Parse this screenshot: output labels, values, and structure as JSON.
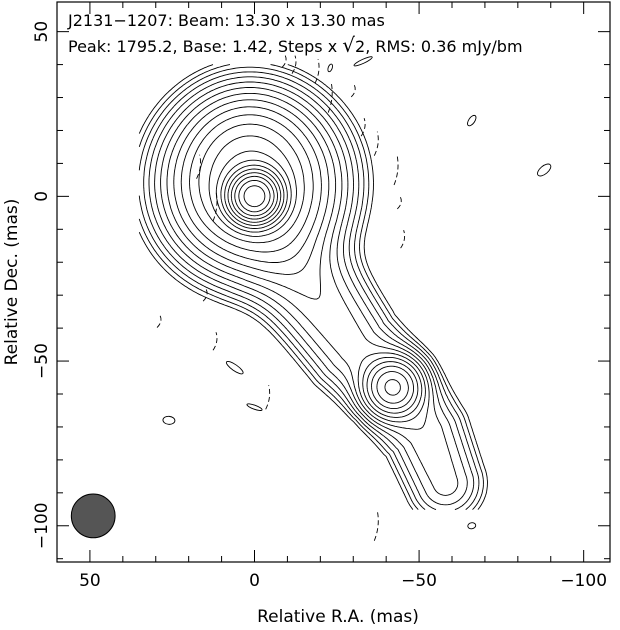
{
  "header": {
    "line1": "J2131−1207: Beam: 13.30 x 13.30 mas",
    "line2_prefix": "Peak: 1795.2, Base: 1.42, Steps x ",
    "line2_step": "2",
    "line2_suffix": ", RMS: 0.36 mJy/bm"
  },
  "chart_data": {
    "type": "contour",
    "title": "J2131−1207: Beam: 13.30 x 13.30 mas",
    "subtitle": "Peak: 1795.2, Base: 1.42, Steps x √2, RMS: 0.36 mJy/bm",
    "xlabel": "Relative R.A. (mas)",
    "ylabel": "Relative Dec. (mas)",
    "xlim": [
      60,
      -108
    ],
    "ylim": [
      -111,
      59
    ],
    "x_ticks": [
      50,
      0,
      -50,
      -100
    ],
    "x_tick_labels": [
      "50",
      "0",
      "−50",
      "−100"
    ],
    "y_ticks": [
      50,
      0,
      -50,
      -100
    ],
    "y_tick_labels": [
      "50",
      "0",
      "−50",
      "−100"
    ],
    "beam": {
      "major_mas": 13.3,
      "minor_mas": 13.3,
      "center": [
        49,
        -97
      ]
    },
    "peak_mJy_per_beam": 1795.2,
    "base_contour_mJy_per_beam": 1.42,
    "contour_step": "x sqrt(2)",
    "rms_mJy_per_beam": 0.36,
    "contour_count": 21,
    "components": [
      {
        "name": "core",
        "ra": 0,
        "dec": 0
      },
      {
        "name": "jet-component",
        "ra": -42,
        "dec": -58
      }
    ],
    "jet_axis": [
      [
        2,
        15
      ],
      [
        0,
        0
      ],
      [
        -10,
        -18
      ],
      [
        -20,
        -32
      ],
      [
        -30,
        -46
      ],
      [
        -42,
        -58
      ],
      [
        -52,
        -72
      ],
      [
        -58,
        -87
      ]
    ],
    "negative_contours": [
      {
        "ra": -9,
        "dec": 41
      },
      {
        "ra": -12,
        "dec": 40
      },
      {
        "ra": -19,
        "dec": 38
      },
      {
        "ra": -23,
        "dec": 30
      },
      {
        "ra": -30,
        "dec": 32
      },
      {
        "ra": -33,
        "dec": 21
      },
      {
        "ra": -37,
        "dec": 16
      },
      {
        "ra": -43,
        "dec": 8
      },
      {
        "ra": -44,
        "dec": -2
      },
      {
        "ra": -45,
        "dec": -13
      },
      {
        "ra": 17,
        "dec": 9
      },
      {
        "ra": 12,
        "dec": -3
      },
      {
        "ra": 15,
        "dec": -30
      },
      {
        "ra": 12,
        "dec": -44
      },
      {
        "ra": -4,
        "dec": -61
      },
      {
        "ra": -37,
        "dec": -100
      },
      {
        "ra": 29,
        "dec": -38
      }
    ],
    "positive_islands": [
      {
        "ra": -23,
        "dec": 39
      },
      {
        "ra": -66,
        "dec": 23
      },
      {
        "ra": -88,
        "dec": 8
      },
      {
        "ra": -33,
        "dec": 41
      },
      {
        "ra": -66,
        "dec": -100
      },
      {
        "ra": 26,
        "dec": -68
      },
      {
        "ra": 0,
        "dec": -64
      },
      {
        "ra": 6,
        "dec": -52
      }
    ],
    "grid": false
  }
}
